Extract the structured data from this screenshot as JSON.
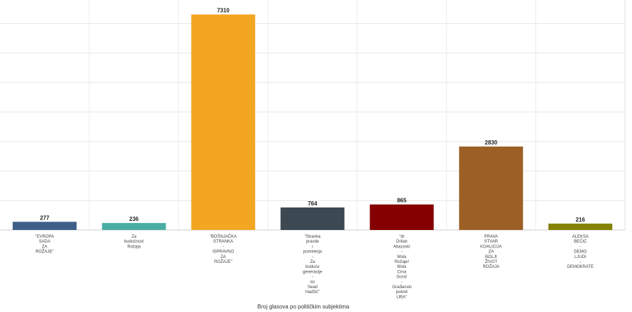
{
  "chart_data": {
    "type": "bar",
    "title": "",
    "xlabel": "Broj glasova po političkim subjektima",
    "ylabel": "",
    "ylim": [
      0,
      7800
    ],
    "grid": true,
    "legend": "none",
    "categories": [
      [
        "\"EVROPA",
        "SADA",
        "ZA",
        "ROŽAJE\""
      ],
      [
        "Za",
        "budućnost",
        "Rožaja"
      ],
      [
        "\"BOŠNJAČKA",
        "STRANKA",
        "-",
        "ISPRAVNO",
        "ZA",
        "ROŽAJE\""
      ],
      [
        "\"Stranka",
        "pravde",
        "i",
        "pomirenja",
        "-",
        "Za",
        "buduće",
        "generacije",
        "-",
        "mr",
        "Sead",
        "Hadžić\""
      ],
      [
        "\"dr",
        "Dritan",
        "Abazović",
        "-",
        "Mola",
        "Rožaje!",
        "Mola",
        "Crna",
        "Gora!",
        "-",
        "Građanski",
        "pokret",
        "URA\""
      ],
      [
        "PRAVA",
        "STVAR",
        "KOALICIJA",
        "ZA",
        "BOLJI",
        "ŽIVOT",
        "ROŽAJA"
      ],
      [
        "ALEKSA",
        "BEČIĆ",
        "-",
        "DEMO",
        "LJUDI",
        "-",
        "DEMOKRATE"
      ]
    ],
    "values": [
      277,
      236,
      7310,
      764,
      865,
      2830,
      216
    ],
    "colors": [
      "#3f5f8a",
      "#4aada4",
      "#f2a622",
      "#3c4852",
      "#850000",
      "#9c6027",
      "#848200"
    ]
  }
}
